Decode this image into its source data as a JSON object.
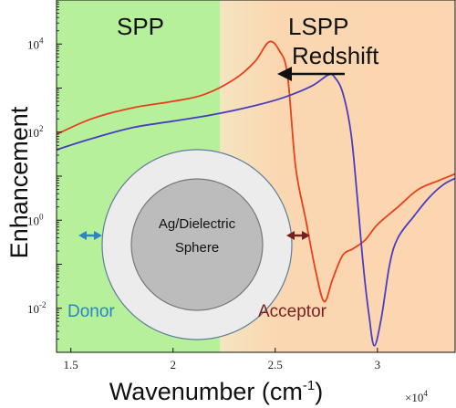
{
  "chart_data": {
    "type": "line",
    "xlabel": "Wavenumber (cm",
    "xlabel_sup": "-1",
    "xlabel_end": ")",
    "ylabel": "Enhancement",
    "x_multiplier": {
      "base": "×10",
      "exp": "4"
    },
    "xlim": [
      14300,
      33800
    ],
    "ylim_log10": [
      -3,
      5
    ],
    "y_scale": "log",
    "x_ticks": [
      {
        "value": 15000,
        "label": "1.5"
      },
      {
        "value": 20000,
        "label": "2"
      },
      {
        "value": 25000,
        "label": "2.5"
      },
      {
        "value": 30000,
        "label": "3"
      }
    ],
    "y_ticks": [
      {
        "log10": -2,
        "base": "10",
        "exp": "-2"
      },
      {
        "log10": 0,
        "base": "10",
        "exp": "0"
      },
      {
        "log10": 2,
        "base": "10",
        "exp": "2"
      },
      {
        "log10": 4,
        "base": "10",
        "exp": "4"
      }
    ],
    "regions": [
      {
        "label": "SPP",
        "from": 14300,
        "to": 22300,
        "color": "#b6f09a"
      },
      {
        "label": "LSPP",
        "from": 22300,
        "to": 33800,
        "color": "#fbd7b1"
      }
    ],
    "colors": {
      "red_series": "#e8401c",
      "blue_series": "#4a3cc0"
    },
    "series": [
      {
        "color": "#e8401c",
        "points": [
          [
            14300,
            1.95
          ],
          [
            16000,
            2.3
          ],
          [
            18000,
            2.55
          ],
          [
            20000,
            2.7
          ],
          [
            21500,
            2.85
          ],
          [
            23000,
            3.2
          ],
          [
            24000,
            3.6
          ],
          [
            24700,
            4.05
          ],
          [
            25200,
            3.85
          ],
          [
            25600,
            3.3
          ],
          [
            26000,
            1.2
          ],
          [
            26500,
            0.0
          ],
          [
            27000,
            -1.2
          ],
          [
            27400,
            -1.85
          ],
          [
            27800,
            -1.35
          ],
          [
            28300,
            -0.8
          ],
          [
            28800,
            -0.65
          ],
          [
            29400,
            -0.45
          ],
          [
            30000,
            -0.1
          ],
          [
            31000,
            0.3
          ],
          [
            32000,
            0.7
          ],
          [
            33000,
            0.9
          ],
          [
            33800,
            1.05
          ]
        ]
      },
      {
        "color": "#4a3cc0",
        "points": [
          [
            14300,
            1.6
          ],
          [
            16000,
            1.85
          ],
          [
            18000,
            2.1
          ],
          [
            20000,
            2.25
          ],
          [
            22000,
            2.4
          ],
          [
            24000,
            2.6
          ],
          [
            25500,
            2.8
          ],
          [
            26800,
            3.05
          ],
          [
            27600,
            3.3
          ],
          [
            27900,
            3.25
          ],
          [
            28300,
            2.9
          ],
          [
            28700,
            2.0
          ],
          [
            29000,
            0.6
          ],
          [
            29300,
            -1.0
          ],
          [
            29600,
            -2.2
          ],
          [
            29850,
            -2.85
          ],
          [
            30200,
            -2.2
          ],
          [
            30600,
            -1.0
          ],
          [
            31000,
            -0.4
          ],
          [
            31800,
            0.1
          ],
          [
            32500,
            0.5
          ],
          [
            33200,
            0.8
          ],
          [
            33800,
            0.95
          ]
        ]
      }
    ],
    "annotations": {
      "redshift": "Redshift",
      "sphere_line1": "Ag/Dielectric",
      "sphere_line2": "Sphere",
      "donor": "Donor",
      "acceptor": "Acceptor"
    }
  }
}
